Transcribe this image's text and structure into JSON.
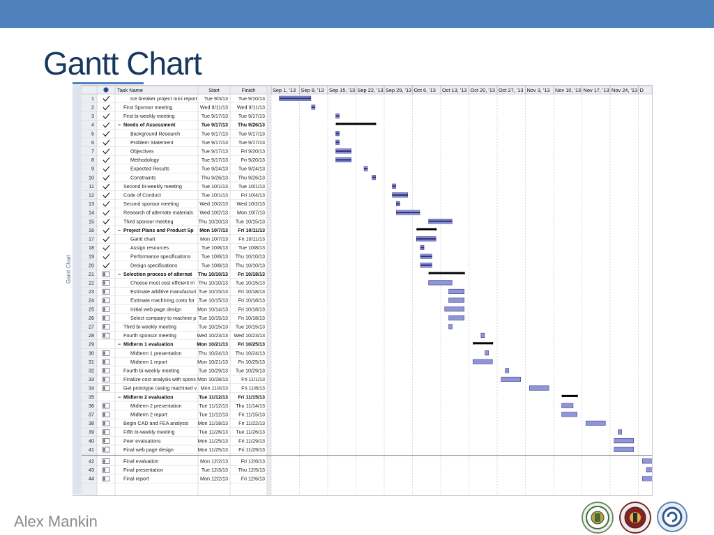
{
  "slide": {
    "title": "Gantt Chart",
    "author": "Alex Mankin",
    "side_label": "Gantt Chart"
  },
  "colors": {
    "topbar": "#4f81bd",
    "title": "#17375e",
    "bar_fill": "#8f95d6",
    "bar_stroke": "#3a3f8f",
    "summary": "#000000"
  },
  "chart_data": {
    "type": "table",
    "columns": {
      "id": "",
      "info": "i",
      "name": "Task Name",
      "start": "Start",
      "finish": "Finish"
    },
    "weeks": [
      "Sep 1, '13",
      "Sep 8, '13",
      "Sep 15, '13",
      "Sep 22, '13",
      "Sep 29, '13",
      "Oct 6, '13",
      "Oct 13, '13",
      "Oct 20, '13",
      "Oct 27, '13",
      "Nov 3, '13",
      "Nov 10, '13",
      "Nov 17, '13",
      "Nov 24, '13",
      "D"
    ],
    "tasks": [
      {
        "id": 1,
        "name": "Ice breaker project mini report",
        "start": "Tue 9/3/13",
        "finish": "Tue 9/10/13",
        "level": 1,
        "summary": false,
        "done": true,
        "s": "2013-09-03",
        "f": "2013-09-10"
      },
      {
        "id": 2,
        "name": "First Sponsor meeting",
        "start": "Wed 9/11/13",
        "finish": "Wed 9/11/13",
        "level": 0,
        "summary": false,
        "done": true,
        "s": "2013-09-11",
        "f": "2013-09-11"
      },
      {
        "id": 3,
        "name": "First bi-weekly meeting",
        "start": "Tue 9/17/13",
        "finish": "Tue 9/17/13",
        "level": 0,
        "summary": false,
        "done": true,
        "s": "2013-09-17",
        "f": "2013-09-17"
      },
      {
        "id": 4,
        "name": "Needs of Assessment",
        "start": "Tue 9/17/13",
        "finish": "Thu 9/26/13",
        "level": 0,
        "summary": true,
        "done": true,
        "s": "2013-09-17",
        "f": "2013-09-26"
      },
      {
        "id": 5,
        "name": "Background Research",
        "start": "Tue 9/17/13",
        "finish": "Tue 9/17/13",
        "level": 1,
        "summary": false,
        "done": true,
        "s": "2013-09-17",
        "f": "2013-09-17"
      },
      {
        "id": 6,
        "name": "Problem Statement",
        "start": "Tue 9/17/13",
        "finish": "Tue 9/17/13",
        "level": 1,
        "summary": false,
        "done": true,
        "s": "2013-09-17",
        "f": "2013-09-17"
      },
      {
        "id": 7,
        "name": "Objectives",
        "start": "Tue 9/17/13",
        "finish": "Fri 9/20/13",
        "level": 1,
        "summary": false,
        "done": true,
        "s": "2013-09-17",
        "f": "2013-09-20"
      },
      {
        "id": 8,
        "name": "Methodology",
        "start": "Tue 9/17/13",
        "finish": "Fri 9/20/13",
        "level": 1,
        "summary": false,
        "done": true,
        "s": "2013-09-17",
        "f": "2013-09-20"
      },
      {
        "id": 9,
        "name": "Expected Results",
        "start": "Tue 9/24/13",
        "finish": "Tue 9/24/13",
        "level": 1,
        "summary": false,
        "done": true,
        "s": "2013-09-24",
        "f": "2013-09-24"
      },
      {
        "id": 10,
        "name": "Constraints",
        "start": "Thu 9/26/13",
        "finish": "Thu 9/26/13",
        "level": 1,
        "summary": false,
        "done": true,
        "s": "2013-09-26",
        "f": "2013-09-26"
      },
      {
        "id": 11,
        "name": "Second bi-weekly meeting",
        "start": "Tue 10/1/13",
        "finish": "Tue 10/1/13",
        "level": 0,
        "summary": false,
        "done": true,
        "s": "2013-10-01",
        "f": "2013-10-01"
      },
      {
        "id": 12,
        "name": "Code of Conduct",
        "start": "Tue 10/1/13",
        "finish": "Fri 10/4/13",
        "level": 0,
        "summary": false,
        "done": true,
        "s": "2013-10-01",
        "f": "2013-10-04"
      },
      {
        "id": 13,
        "name": "Second sponsor meeting",
        "start": "Wed 10/2/13",
        "finish": "Wed 10/2/13",
        "level": 0,
        "summary": false,
        "done": true,
        "s": "2013-10-02",
        "f": "2013-10-02"
      },
      {
        "id": 14,
        "name": "Research of alternate materials",
        "start": "Wed 10/2/13",
        "finish": "Mon 10/7/13",
        "level": 0,
        "summary": false,
        "done": true,
        "s": "2013-10-02",
        "f": "2013-10-07"
      },
      {
        "id": 15,
        "name": "Third sponsor meeting",
        "start": "Thu 10/10/13",
        "finish": "Tue 10/15/13",
        "level": 0,
        "summary": false,
        "done": true,
        "s": "2013-10-10",
        "f": "2013-10-15"
      },
      {
        "id": 16,
        "name": "Project Plans and Product Sp",
        "start": "Mon 10/7/13",
        "finish": "Fri 10/11/13",
        "level": 0,
        "summary": true,
        "done": true,
        "s": "2013-10-07",
        "f": "2013-10-11"
      },
      {
        "id": 17,
        "name": "Gantt chart",
        "start": "Mon 10/7/13",
        "finish": "Fri 10/11/13",
        "level": 1,
        "summary": false,
        "done": true,
        "s": "2013-10-07",
        "f": "2013-10-11"
      },
      {
        "id": 18,
        "name": "Assign resources",
        "start": "Tue 10/8/13",
        "finish": "Tue 10/8/13",
        "level": 1,
        "summary": false,
        "done": true,
        "s": "2013-10-08",
        "f": "2013-10-08"
      },
      {
        "id": 19,
        "name": "Performance specifications",
        "start": "Tue 10/8/13",
        "finish": "Thu 10/10/13",
        "level": 1,
        "summary": false,
        "done": true,
        "s": "2013-10-08",
        "f": "2013-10-10"
      },
      {
        "id": 20,
        "name": "Design specifications",
        "start": "Tue 10/8/13",
        "finish": "Thu 10/10/13",
        "level": 1,
        "summary": false,
        "done": true,
        "s": "2013-10-08",
        "f": "2013-10-10"
      },
      {
        "id": 21,
        "name": "Selection process of alternat",
        "start": "Thu 10/10/13",
        "finish": "Fri 10/18/13",
        "level": 0,
        "summary": true,
        "done": false,
        "s": "2013-10-10",
        "f": "2013-10-18"
      },
      {
        "id": 22,
        "name": "Choose most cost efficient m",
        "start": "Thu 10/10/13",
        "finish": "Tue 10/15/13",
        "level": 1,
        "summary": false,
        "done": false,
        "s": "2013-10-10",
        "f": "2013-10-15"
      },
      {
        "id": 23,
        "name": "Estimate additive manufacturi",
        "start": "Tue 10/15/13",
        "finish": "Fri 10/18/13",
        "level": 1,
        "summary": false,
        "done": false,
        "s": "2013-10-15",
        "f": "2013-10-18"
      },
      {
        "id": 24,
        "name": "Estimate machining costs for",
        "start": "Tue 10/15/13",
        "finish": "Fri 10/18/13",
        "level": 1,
        "summary": false,
        "done": false,
        "s": "2013-10-15",
        "f": "2013-10-18"
      },
      {
        "id": 25,
        "name": "Initial web page design",
        "start": "Mon 10/14/13",
        "finish": "Fri 10/18/13",
        "level": 1,
        "summary": false,
        "done": false,
        "s": "2013-10-14",
        "f": "2013-10-18"
      },
      {
        "id": 26,
        "name": "Select company to machine p",
        "start": "Tue 10/15/13",
        "finish": "Fri 10/18/13",
        "level": 1,
        "summary": false,
        "done": false,
        "s": "2013-10-15",
        "f": "2013-10-18"
      },
      {
        "id": 27,
        "name": "Third bi-weekly meeting",
        "start": "Tue 10/15/13",
        "finish": "Tue 10/15/13",
        "level": 0,
        "summary": false,
        "done": false,
        "s": "2013-10-15",
        "f": "2013-10-15"
      },
      {
        "id": 28,
        "name": "Fourth sponsor meeting",
        "start": "Wed 10/23/13",
        "finish": "Wed 10/23/13",
        "level": 0,
        "summary": false,
        "done": false,
        "s": "2013-10-23",
        "f": "2013-10-23"
      },
      {
        "id": 29,
        "name": "Midterm 1 evaluation",
        "start": "Mon 10/21/13",
        "finish": "Fri 10/25/13",
        "level": 0,
        "summary": true,
        "done": false,
        "blank": true,
        "s": "2013-10-21",
        "f": "2013-10-25"
      },
      {
        "id": 30,
        "name": "Midterm 1 presentation",
        "start": "Thu 10/24/13",
        "finish": "Thu 10/24/13",
        "level": 1,
        "summary": false,
        "done": false,
        "s": "2013-10-24",
        "f": "2013-10-24"
      },
      {
        "id": 31,
        "name": "Midterm 1 report",
        "start": "Mon 10/21/13",
        "finish": "Fri 10/25/13",
        "level": 1,
        "summary": false,
        "done": false,
        "s": "2013-10-21",
        "f": "2013-10-25"
      },
      {
        "id": 32,
        "name": "Fourth bi-weekly meeting",
        "start": "Tue 10/29/13",
        "finish": "Tue 10/29/13",
        "level": 0,
        "summary": false,
        "done": false,
        "s": "2013-10-29",
        "f": "2013-10-29"
      },
      {
        "id": 33,
        "name": "Finalize cost analysis with spons",
        "start": "Mon 10/28/13",
        "finish": "Fri 11/1/13",
        "level": 0,
        "summary": false,
        "done": false,
        "s": "2013-10-28",
        "f": "2013-11-01"
      },
      {
        "id": 34,
        "name": "Get prototype casing machined v",
        "start": "Mon 11/4/13",
        "finish": "Fri 11/8/13",
        "level": 0,
        "summary": false,
        "done": false,
        "s": "2013-11-04",
        "f": "2013-11-08"
      },
      {
        "id": 35,
        "name": "Midterm 2 evaluation",
        "start": "Tue 11/12/13",
        "finish": "Fri 11/15/13",
        "level": 0,
        "summary": true,
        "done": false,
        "blank": true,
        "s": "2013-11-12",
        "f": "2013-11-15"
      },
      {
        "id": 36,
        "name": "Midterm 2 presentation",
        "start": "Tue 11/12/13",
        "finish": "Thu 11/14/13",
        "level": 1,
        "summary": false,
        "done": false,
        "s": "2013-11-12",
        "f": "2013-11-14"
      },
      {
        "id": 37,
        "name": "Midterm 2 report",
        "start": "Tue 11/12/13",
        "finish": "Fri 11/15/13",
        "level": 1,
        "summary": false,
        "done": false,
        "s": "2013-11-12",
        "f": "2013-11-15"
      },
      {
        "id": 38,
        "name": "Begin CAD and FEA analysis",
        "start": "Mon 11/18/13",
        "finish": "Fri 11/22/13",
        "level": 0,
        "summary": false,
        "done": false,
        "s": "2013-11-18",
        "f": "2013-11-22"
      },
      {
        "id": 39,
        "name": "Fifth bi-weekly meeting",
        "start": "Tue 11/26/13",
        "finish": "Tue 11/26/13",
        "level": 0,
        "summary": false,
        "done": false,
        "s": "2013-11-26",
        "f": "2013-11-26"
      },
      {
        "id": 40,
        "name": "Peer evaluations",
        "start": "Mon 11/25/13",
        "finish": "Fri 11/29/13",
        "level": 0,
        "summary": false,
        "done": false,
        "s": "2013-11-25",
        "f": "2013-11-29"
      },
      {
        "id": 41,
        "name": "Final web page design",
        "start": "Mon 11/25/13",
        "finish": "Fri 11/29/13",
        "level": 0,
        "summary": false,
        "done": false,
        "s": "2013-11-25",
        "f": "2013-11-29"
      },
      {
        "id": 42,
        "name": "Final evaluation",
        "start": "Mon 12/2/13",
        "finish": "Fri 12/6/13",
        "level": 0,
        "summary": false,
        "done": false,
        "s": "2013-12-02",
        "f": "2013-12-06"
      },
      {
        "id": 43,
        "name": "Final presentation",
        "start": "Tue 12/3/13",
        "finish": "Thu 12/5/13",
        "level": 0,
        "summary": false,
        "done": false,
        "s": "2013-12-03",
        "f": "2013-12-05"
      },
      {
        "id": 44,
        "name": "Final report",
        "start": "Mon 12/2/13",
        "finish": "Fri 12/6/13",
        "level": 0,
        "summary": false,
        "done": false,
        "s": "2013-12-02",
        "f": "2013-12-06"
      }
    ]
  }
}
